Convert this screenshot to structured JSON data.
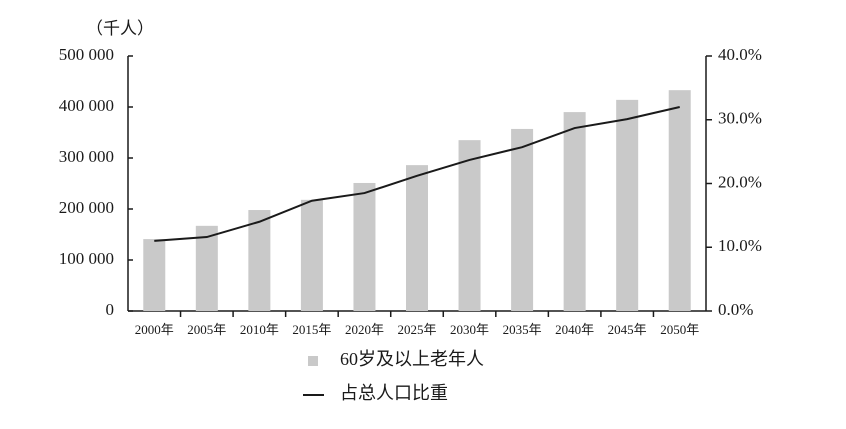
{
  "chart_data": {
    "type": "bar-line",
    "y_unit_label": "（千人）",
    "categories": [
      "2000年",
      "2005年",
      "2010年",
      "2015年",
      "2020年",
      "2025年",
      "2030年",
      "2035年",
      "2040年",
      "2045年",
      "2050年"
    ],
    "series": [
      {
        "name": "60岁及以上老年人",
        "type": "bar",
        "color": "#c9c9c9",
        "values": [
          141000,
          167000,
          198000,
          218000,
          251000,
          286000,
          335000,
          357000,
          390000,
          414000,
          433000
        ]
      },
      {
        "name": "占总人口比重",
        "type": "line",
        "axis": "y2",
        "color": "#1a1a1a",
        "values": [
          11.0,
          11.6,
          14.0,
          17.3,
          18.5,
          21.2,
          23.7,
          25.7,
          28.7,
          30.1,
          32.0
        ]
      }
    ],
    "ylim": [
      0,
      500000
    ],
    "yticks": [
      0,
      {
        "value": 100000,
        "label": "100 000"
      },
      {
        "value": 200000,
        "label": "200 000"
      },
      {
        "value": 300000,
        "label": "300 000"
      },
      {
        "value": 400000,
        "label": "400 000"
      },
      {
        "value": 500000,
        "label": "500 000"
      }
    ],
    "y2lim": [
      0,
      40
    ],
    "y2ticks": [
      {
        "value": 0,
        "label": "0.0%"
      },
      {
        "value": 10,
        "label": "10.0%"
      },
      {
        "value": 20,
        "label": "20.0%"
      },
      {
        "value": 30,
        "label": "30.0%"
      },
      {
        "value": 40,
        "label": "40.0%"
      }
    ],
    "grid": false
  }
}
